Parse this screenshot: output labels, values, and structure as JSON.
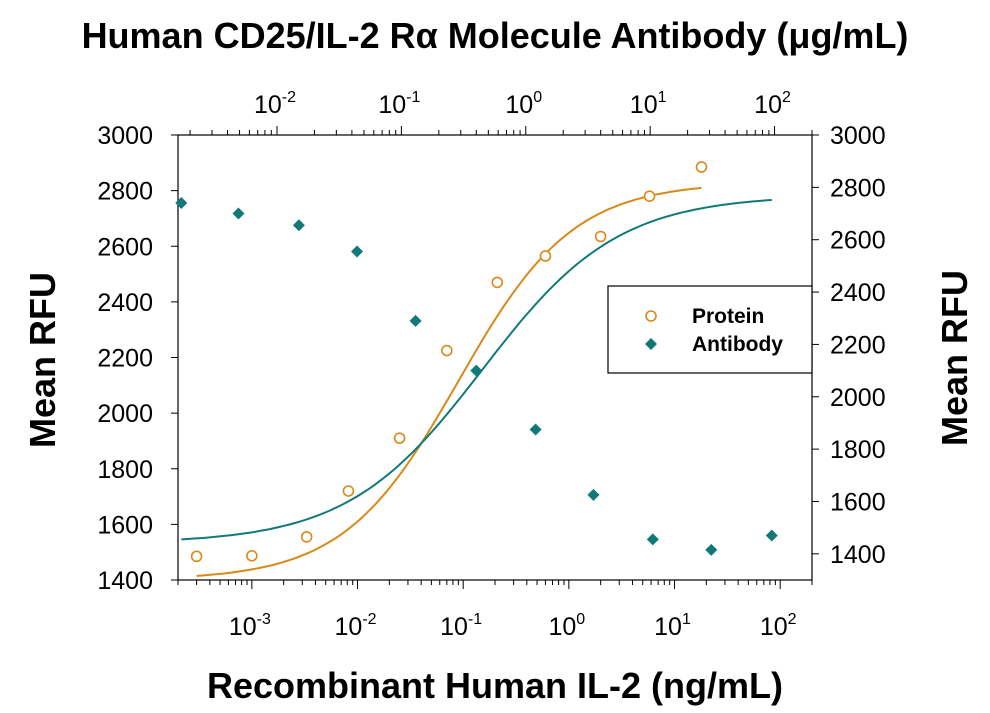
{
  "chart_data": {
    "type": "scatter",
    "title": "Human CD25/IL-2 Rα Molecule Antibody (μg/mL)",
    "xlabel": "Recombinant Human IL-2 (ng/mL)",
    "ylabel_left": "Mean RFU",
    "ylabel_right": "Mean RFU",
    "x_scale": "log",
    "x_bottom_range": [
      0.0002,
      200
    ],
    "x_bottom_ticks": [
      {
        "base": "10",
        "exp": "-3",
        "value": 0.001
      },
      {
        "base": "10",
        "exp": "-2",
        "value": 0.01
      },
      {
        "base": "10",
        "exp": "-1",
        "value": 0.1
      },
      {
        "base": "10",
        "exp": "0",
        "value": 1
      },
      {
        "base": "10",
        "exp": "1",
        "value": 10
      },
      {
        "base": "10",
        "exp": "2",
        "value": 100
      }
    ],
    "x_top_range": [
      0.0016,
      200
    ],
    "x_top_ticks": [
      {
        "base": "10",
        "exp": "-2",
        "value": 0.01
      },
      {
        "base": "10",
        "exp": "-1",
        "value": 0.1
      },
      {
        "base": "10",
        "exp": "0",
        "value": 1
      },
      {
        "base": "10",
        "exp": "1",
        "value": 10
      },
      {
        "base": "10",
        "exp": "2",
        "value": 100
      }
    ],
    "y_left_range": [
      1400,
      3000
    ],
    "y_left_ticks": [
      "1400",
      "1600",
      "1800",
      "2000",
      "2200",
      "2400",
      "2600",
      "2800",
      "3000"
    ],
    "y_right_range": [
      1300,
      3000
    ],
    "y_right_ticks": [
      "1400",
      "1600",
      "1800",
      "2000",
      "2200",
      "2400",
      "2600",
      "2800",
      "3000"
    ],
    "legend_position": "center-right",
    "series": [
      {
        "name": "Protein",
        "axis": "bottom-left",
        "marker": "open-circle",
        "color": "#d9891a",
        "x": [
          0.0003,
          0.001,
          0.0033,
          0.0082,
          0.025,
          0.07,
          0.21,
          0.6,
          2.0,
          5.8,
          18
        ],
        "y": [
          1485,
          1487,
          1555,
          1720,
          1910,
          2225,
          2470,
          2565,
          2635,
          2780,
          2885
        ],
        "fit": {
          "bottom": 1400,
          "top": 2830,
          "ec50": 0.09,
          "hill": 0.8,
          "x_range": [
            0.0003,
            18
          ]
        }
      },
      {
        "name": "Antibody",
        "axis": "top-right",
        "marker": "filled-diamond",
        "color": "#117a78",
        "x": [
          0.0017,
          0.0049,
          0.015,
          0.044,
          0.13,
          0.4,
          1.2,
          3.5,
          10.5,
          31,
          95
        ],
        "y": [
          2740,
          2700,
          2655,
          2555,
          2290,
          2100,
          1875,
          1625,
          1455,
          1415,
          1470
        ],
        "fit": {
          "bottom": 1440,
          "top": 2770,
          "ec50": 0.45,
          "hill": 0.8,
          "x_range": [
            0.0017,
            95
          ]
        }
      }
    ]
  }
}
